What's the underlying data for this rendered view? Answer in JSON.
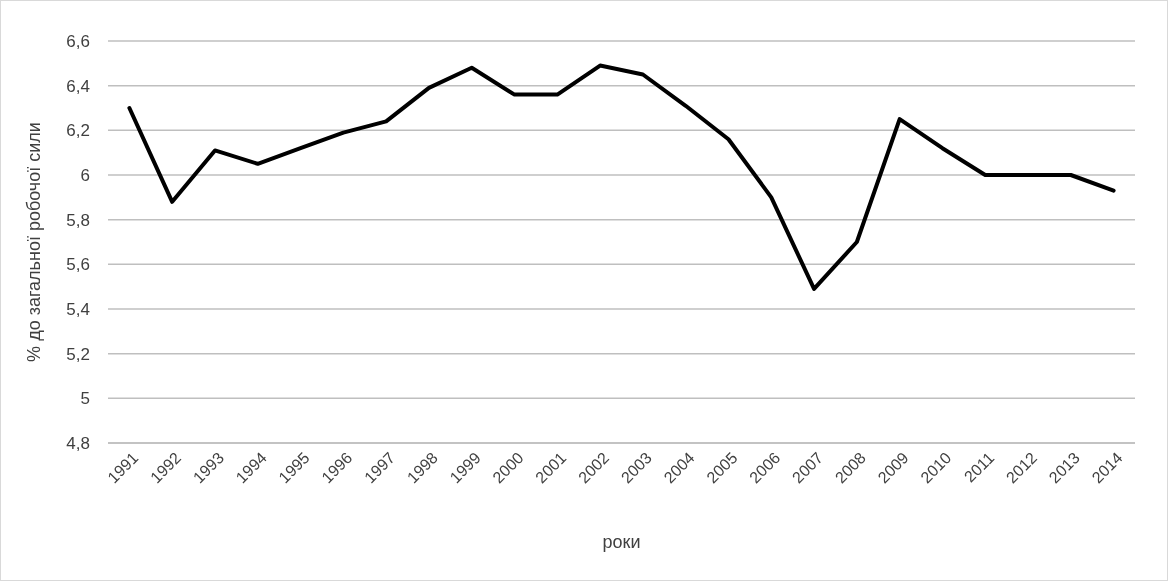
{
  "chart_data": {
    "type": "line",
    "xlabel": "роки",
    "ylabel": "% до загальної робочої сили",
    "categories": [
      "1991",
      "1992",
      "1993",
      "1994",
      "1995",
      "1996",
      "1997",
      "1998",
      "1999",
      "2000",
      "2001",
      "2002",
      "2003",
      "2004",
      "2005",
      "2006",
      "2007",
      "2008",
      "2009",
      "2010",
      "2011",
      "2012",
      "2013",
      "2014"
    ],
    "series": [
      {
        "color": "#000000",
        "values": [
          6.3,
          5.88,
          6.11,
          6.05,
          6.12,
          6.19,
          6.24,
          6.39,
          6.48,
          6.36,
          6.36,
          6.49,
          6.45,
          6.31,
          6.16,
          5.9,
          5.49,
          5.7,
          6.25,
          6.12,
          6.0,
          6.0,
          6.0,
          5.93
        ]
      }
    ],
    "ylim": [
      4.8,
      6.6
    ],
    "yticks": [
      {
        "value": 4.8,
        "label": "4,8"
      },
      5,
      {
        "value": 5.2,
        "label": "5,2"
      },
      {
        "value": 5.4,
        "label": "5,4"
      },
      {
        "value": 5.6,
        "label": "5,6"
      },
      {
        "value": 5.8,
        "label": "5,8"
      },
      6,
      {
        "value": 6.2,
        "label": "6,2"
      },
      {
        "value": 6.4,
        "label": "6,4"
      },
      {
        "value": 6.6,
        "label": "6,6"
      }
    ],
    "grid": "y",
    "marker": "none",
    "line_style": "solid"
  }
}
